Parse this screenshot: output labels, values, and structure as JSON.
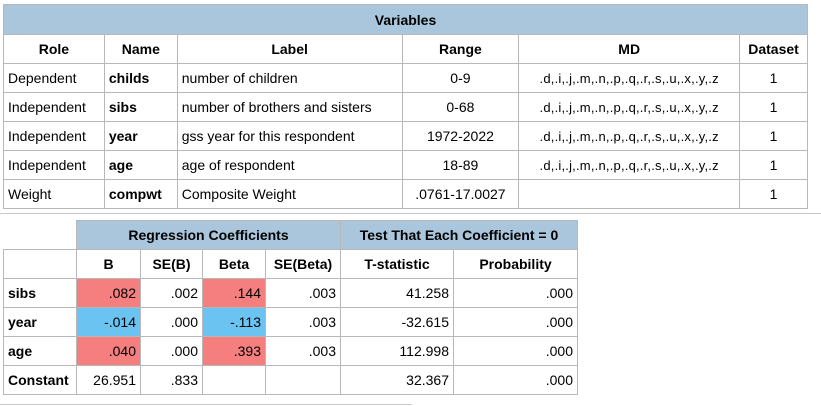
{
  "variables": {
    "title": "Variables",
    "headers": {
      "role": "Role",
      "name": "Name",
      "label": "Label",
      "range": "Range",
      "md": "MD",
      "dataset": "Dataset"
    },
    "rows": [
      {
        "role": "Dependent",
        "name": "childs",
        "label": "number of children",
        "range": "0-9",
        "md": ".d,.i,.j,.m,.n,.p,.q,.r,.s,.u,.x,.y,.z",
        "dataset": "1"
      },
      {
        "role": "Independent",
        "name": "sibs",
        "label": "number of brothers and sisters",
        "range": "0-68",
        "md": ".d,.i,.j,.m,.n,.p,.q,.r,.s,.u,.x,.y,.z",
        "dataset": "1"
      },
      {
        "role": "Independent",
        "name": "year",
        "label": "gss year for this respondent",
        "range": "1972-2022",
        "md": ".d,.i,.j,.m,.n,.p,.q,.r,.s,.u,.x,.y,.z",
        "dataset": "1"
      },
      {
        "role": "Independent",
        "name": "age",
        "label": "age of respondent",
        "range": "18-89",
        "md": ".d,.i,.j,.m,.n,.p,.q,.r,.s,.u,.x,.y,.z",
        "dataset": "1"
      },
      {
        "role": "Weight",
        "name": "compwt",
        "label": "Composite Weight",
        "range": ".0761-17.0027",
        "md": "",
        "dataset": "1"
      }
    ]
  },
  "regression": {
    "group_coef": "Regression Coefficients",
    "group_test": "Test That Each Coefficient = 0",
    "headers": {
      "b": "B",
      "se_b": "SE(B)",
      "beta": "Beta",
      "se_beta": "SE(Beta)",
      "t": "T-statistic",
      "p": "Probability"
    },
    "rows": [
      {
        "name": "sibs",
        "b": ".082",
        "se_b": ".002",
        "beta": ".144",
        "se_beta": ".003",
        "t": "41.258",
        "p": ".000"
      },
      {
        "name": "year",
        "b": "-.014",
        "se_b": ".000",
        "beta": "-.113",
        "se_beta": ".003",
        "t": "-32.615",
        "p": ".000"
      },
      {
        "name": "age",
        "b": ".040",
        "se_b": ".000",
        "beta": ".393",
        "se_beta": ".003",
        "t": "112.998",
        "p": ".000"
      },
      {
        "name": "Constant",
        "b": "26.951",
        "se_b": ".833",
        "beta": "",
        "se_beta": "",
        "t": "32.367",
        "p": ".000"
      }
    ],
    "colors": {
      "positive": "#f57f7f",
      "negative": "#6bc3f2",
      "header": "#a9c6dc"
    }
  }
}
